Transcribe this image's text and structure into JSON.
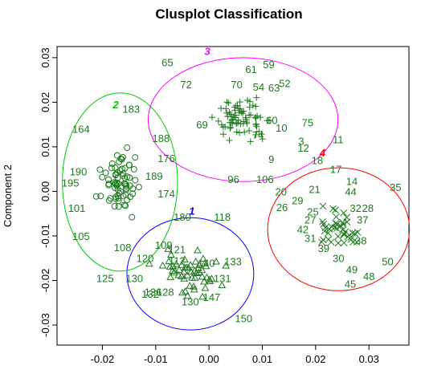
{
  "chart_data": {
    "type": "scatter",
    "title": "Clusplot Classification",
    "xlabel": "",
    "ylabel": "Component 2",
    "xlim": [
      -0.0285,
      0.0375
    ],
    "ylim": [
      -0.0345,
      0.0325
    ],
    "x_ticks": [
      "-0.02",
      "-0.01",
      "0.00",
      "0.01",
      "0.02",
      "0.03"
    ],
    "x_tick_values": [
      -0.02,
      -0.01,
      0.0,
      0.01,
      0.02,
      0.03
    ],
    "y_ticks": [
      "-0.03",
      "-0.02",
      "-0.01",
      "0.00",
      "0.01",
      "0.02",
      "0.03"
    ],
    "y_tick_values": [
      -0.03,
      -0.02,
      -0.01,
      0.0,
      0.01,
      0.02,
      0.03
    ],
    "point_color": "#1e7a1e",
    "clusters": [
      {
        "id": "1",
        "color": "#0000ff",
        "center": [
          -0.0035,
          -0.0185
        ],
        "radius": [
          0.0119,
          0.0126
        ],
        "label_pos": [
          -0.0032,
          -0.0043
        ]
      },
      {
        "id": "2",
        "color": "#00cc00",
        "center": [
          -0.0167,
          0.0021
        ],
        "radius": [
          0.0108,
          0.02
        ],
        "label_pos": [
          -0.0175,
          0.0195
        ]
      },
      {
        "id": "3",
        "color": "#ff00ff",
        "center": [
          0.0064,
          0.0161
        ],
        "radius": [
          0.0178,
          0.0139
        ],
        "label_pos": [
          -0.0003,
          0.0315
        ]
      },
      {
        "id": "4",
        "color": "#ff0000",
        "center": [
          0.0243,
          -0.0085
        ],
        "radius": [
          0.0133,
          0.0138
        ],
        "label_pos": [
          0.0213,
          0.0087
        ]
      }
    ],
    "labeled_points": [
      {
        "label": "65",
        "x": -0.0078,
        "y": 0.029
      },
      {
        "label": "61",
        "x": 0.0079,
        "y": 0.0275
      },
      {
        "label": "59",
        "x": 0.0112,
        "y": 0.0285
      },
      {
        "label": "72",
        "x": -0.0043,
        "y": 0.024
      },
      {
        "label": "70",
        "x": 0.0052,
        "y": 0.024
      },
      {
        "label": "63",
        "x": 0.0122,
        "y": 0.0233
      },
      {
        "label": "52",
        "x": 0.0142,
        "y": 0.0243
      },
      {
        "label": "54",
        "x": 0.0093,
        "y": 0.0235
      },
      {
        "label": "60",
        "x": 0.0118,
        "y": 0.016
      },
      {
        "label": "75",
        "x": 0.0185,
        "y": 0.0155
      },
      {
        "label": "69",
        "x": -0.0013,
        "y": 0.015
      },
      {
        "label": "10",
        "x": 0.0136,
        "y": 0.0143
      },
      {
        "label": "74",
        "x": 0.0092,
        "y": 0.0127
      },
      {
        "label": "3",
        "x": 0.0173,
        "y": 0.0113
      },
      {
        "label": "11",
        "x": 0.0242,
        "y": 0.0117
      },
      {
        "label": "12",
        "x": 0.0177,
        "y": 0.0098
      },
      {
        "label": "9",
        "x": 0.0117,
        "y": 0.0073
      },
      {
        "label": "18",
        "x": 0.0203,
        "y": 0.007
      },
      {
        "label": "17",
        "x": 0.0238,
        "y": 0.005
      },
      {
        "label": "96",
        "x": 0.0046,
        "y": 0.0028
      },
      {
        "label": "106",
        "x": 0.0105,
        "y": 0.0028
      },
      {
        "label": "20",
        "x": 0.0135,
        "y": 0.0
      },
      {
        "label": "14",
        "x": 0.0268,
        "y": 0.0023
      },
      {
        "label": "35",
        "x": 0.035,
        "y": 0.001
      },
      {
        "label": "21",
        "x": 0.0198,
        "y": 0.0005
      },
      {
        "label": "44",
        "x": 0.0266,
        "y": 0.0
      },
      {
        "label": "29",
        "x": 0.0166,
        "y": -0.002
      },
      {
        "label": "26",
        "x": 0.0137,
        "y": -0.0035
      },
      {
        "label": "32",
        "x": 0.0275,
        "y": -0.0037
      },
      {
        "label": "28",
        "x": 0.0298,
        "y": -0.0037
      },
      {
        "label": "25",
        "x": 0.0195,
        "y": -0.0045
      },
      {
        "label": "27",
        "x": 0.019,
        "y": -0.0063
      },
      {
        "label": "37",
        "x": 0.0288,
        "y": -0.0063
      },
      {
        "label": "42",
        "x": 0.0176,
        "y": -0.0085
      },
      {
        "label": "31",
        "x": 0.019,
        "y": -0.0105
      },
      {
        "label": "38",
        "x": 0.0285,
        "y": -0.011
      },
      {
        "label": "39",
        "x": 0.0215,
        "y": -0.0127
      },
      {
        "label": "30",
        "x": 0.0243,
        "y": -0.015
      },
      {
        "label": "49",
        "x": 0.0268,
        "y": -0.0175
      },
      {
        "label": "50",
        "x": 0.0335,
        "y": -0.0157
      },
      {
        "label": "48",
        "x": 0.03,
        "y": -0.019
      },
      {
        "label": "45",
        "x": 0.0265,
        "y": -0.0207
      },
      {
        "label": "183",
        "x": -0.0146,
        "y": 0.0185
      },
      {
        "label": "164",
        "x": -0.024,
        "y": 0.014
      },
      {
        "label": "188",
        "x": -0.009,
        "y": 0.012
      },
      {
        "label": "176",
        "x": -0.008,
        "y": 0.0075
      },
      {
        "label": "190",
        "x": -0.0245,
        "y": 0.0045
      },
      {
        "label": "189",
        "x": -0.0103,
        "y": 0.0035
      },
      {
        "label": "195",
        "x": -0.026,
        "y": 0.002
      },
      {
        "label": "101",
        "x": -0.0248,
        "y": -0.0037
      },
      {
        "label": "174",
        "x": -0.008,
        "y": -0.0005
      },
      {
        "label": "180",
        "x": -0.005,
        "y": -0.0057
      },
      {
        "label": "118",
        "x": 0.0025,
        "y": -0.0057
      },
      {
        "label": "105",
        "x": -0.024,
        "y": -0.01
      },
      {
        "label": "108",
        "x": -0.0162,
        "y": -0.0125
      },
      {
        "label": "109",
        "x": -0.0085,
        "y": -0.012
      },
      {
        "label": "121",
        "x": -0.006,
        "y": -0.013
      },
      {
        "label": "120",
        "x": -0.012,
        "y": -0.015
      },
      {
        "label": "112",
        "x": -0.006,
        "y": -0.0155
      },
      {
        "label": "133",
        "x": 0.0045,
        "y": -0.0157
      },
      {
        "label": "140",
        "x": -0.0005,
        "y": -0.016
      },
      {
        "label": "125",
        "x": -0.0195,
        "y": -0.0195
      },
      {
        "label": "130",
        "x": -0.014,
        "y": -0.0195
      },
      {
        "label": "131",
        "x": 0.0025,
        "y": -0.0195
      },
      {
        "label": "136",
        "x": -0.0105,
        "y": -0.0225
      },
      {
        "label": "132",
        "x": -0.011,
        "y": -0.023
      },
      {
        "label": "128",
        "x": -0.0082,
        "y": -0.0225
      },
      {
        "label": "130",
        "x": -0.0035,
        "y": -0.0247
      },
      {
        "label": "147",
        "x": 0.0005,
        "y": -0.0237
      },
      {
        "label": "150",
        "x": 0.0065,
        "y": -0.0285
      }
    ],
    "cluster_points": {
      "1": {
        "count": 55,
        "spread": [
          0.0058,
          0.0048
        ]
      },
      "2": {
        "count": 70,
        "spread": [
          0.0034,
          0.0062
        ]
      },
      "3": {
        "count": 75,
        "spread": [
          0.0046,
          0.004
        ]
      },
      "4": {
        "count": 40,
        "spread": [
          0.004,
          0.004
        ]
      }
    }
  }
}
